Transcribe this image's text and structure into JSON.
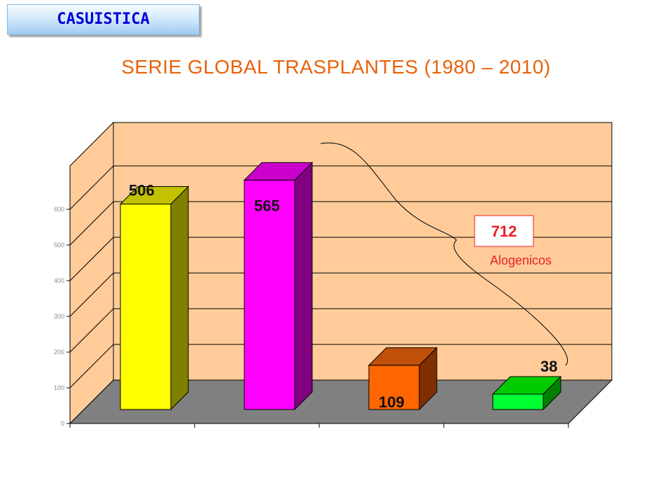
{
  "header": {
    "badge_label": "CASUISTICA"
  },
  "chart_data": {
    "type": "bar",
    "title": "SERIE GLOBAL TRASPLANTES (1980 – 2010)",
    "categories": [
      "",
      "",
      "",
      ""
    ],
    "values": [
      506,
      565,
      109,
      38
    ],
    "value_labels": [
      "506",
      "565",
      "109",
      "38"
    ],
    "ylim": [
      0,
      600
    ],
    "yticks": [
      0,
      100,
      200,
      300,
      400,
      500,
      600
    ],
    "grid": true,
    "three_d": true,
    "colors": [
      {
        "front": "#ffff00",
        "top": "#c2c200",
        "side": "#808000"
      },
      {
        "front": "#ff00ff",
        "top": "#cc00cc",
        "side": "#800080"
      },
      {
        "front": "#ff6600",
        "top": "#c0500a",
        "side": "#803000"
      },
      {
        "front": "#00ff33",
        "top": "#00cc00",
        "side": "#008000"
      }
    ],
    "wall_color": "#ffcc99",
    "floor_color": "#808080",
    "annotation": {
      "value": "712",
      "text": "Alogenicos",
      "color": "#e82028"
    }
  }
}
